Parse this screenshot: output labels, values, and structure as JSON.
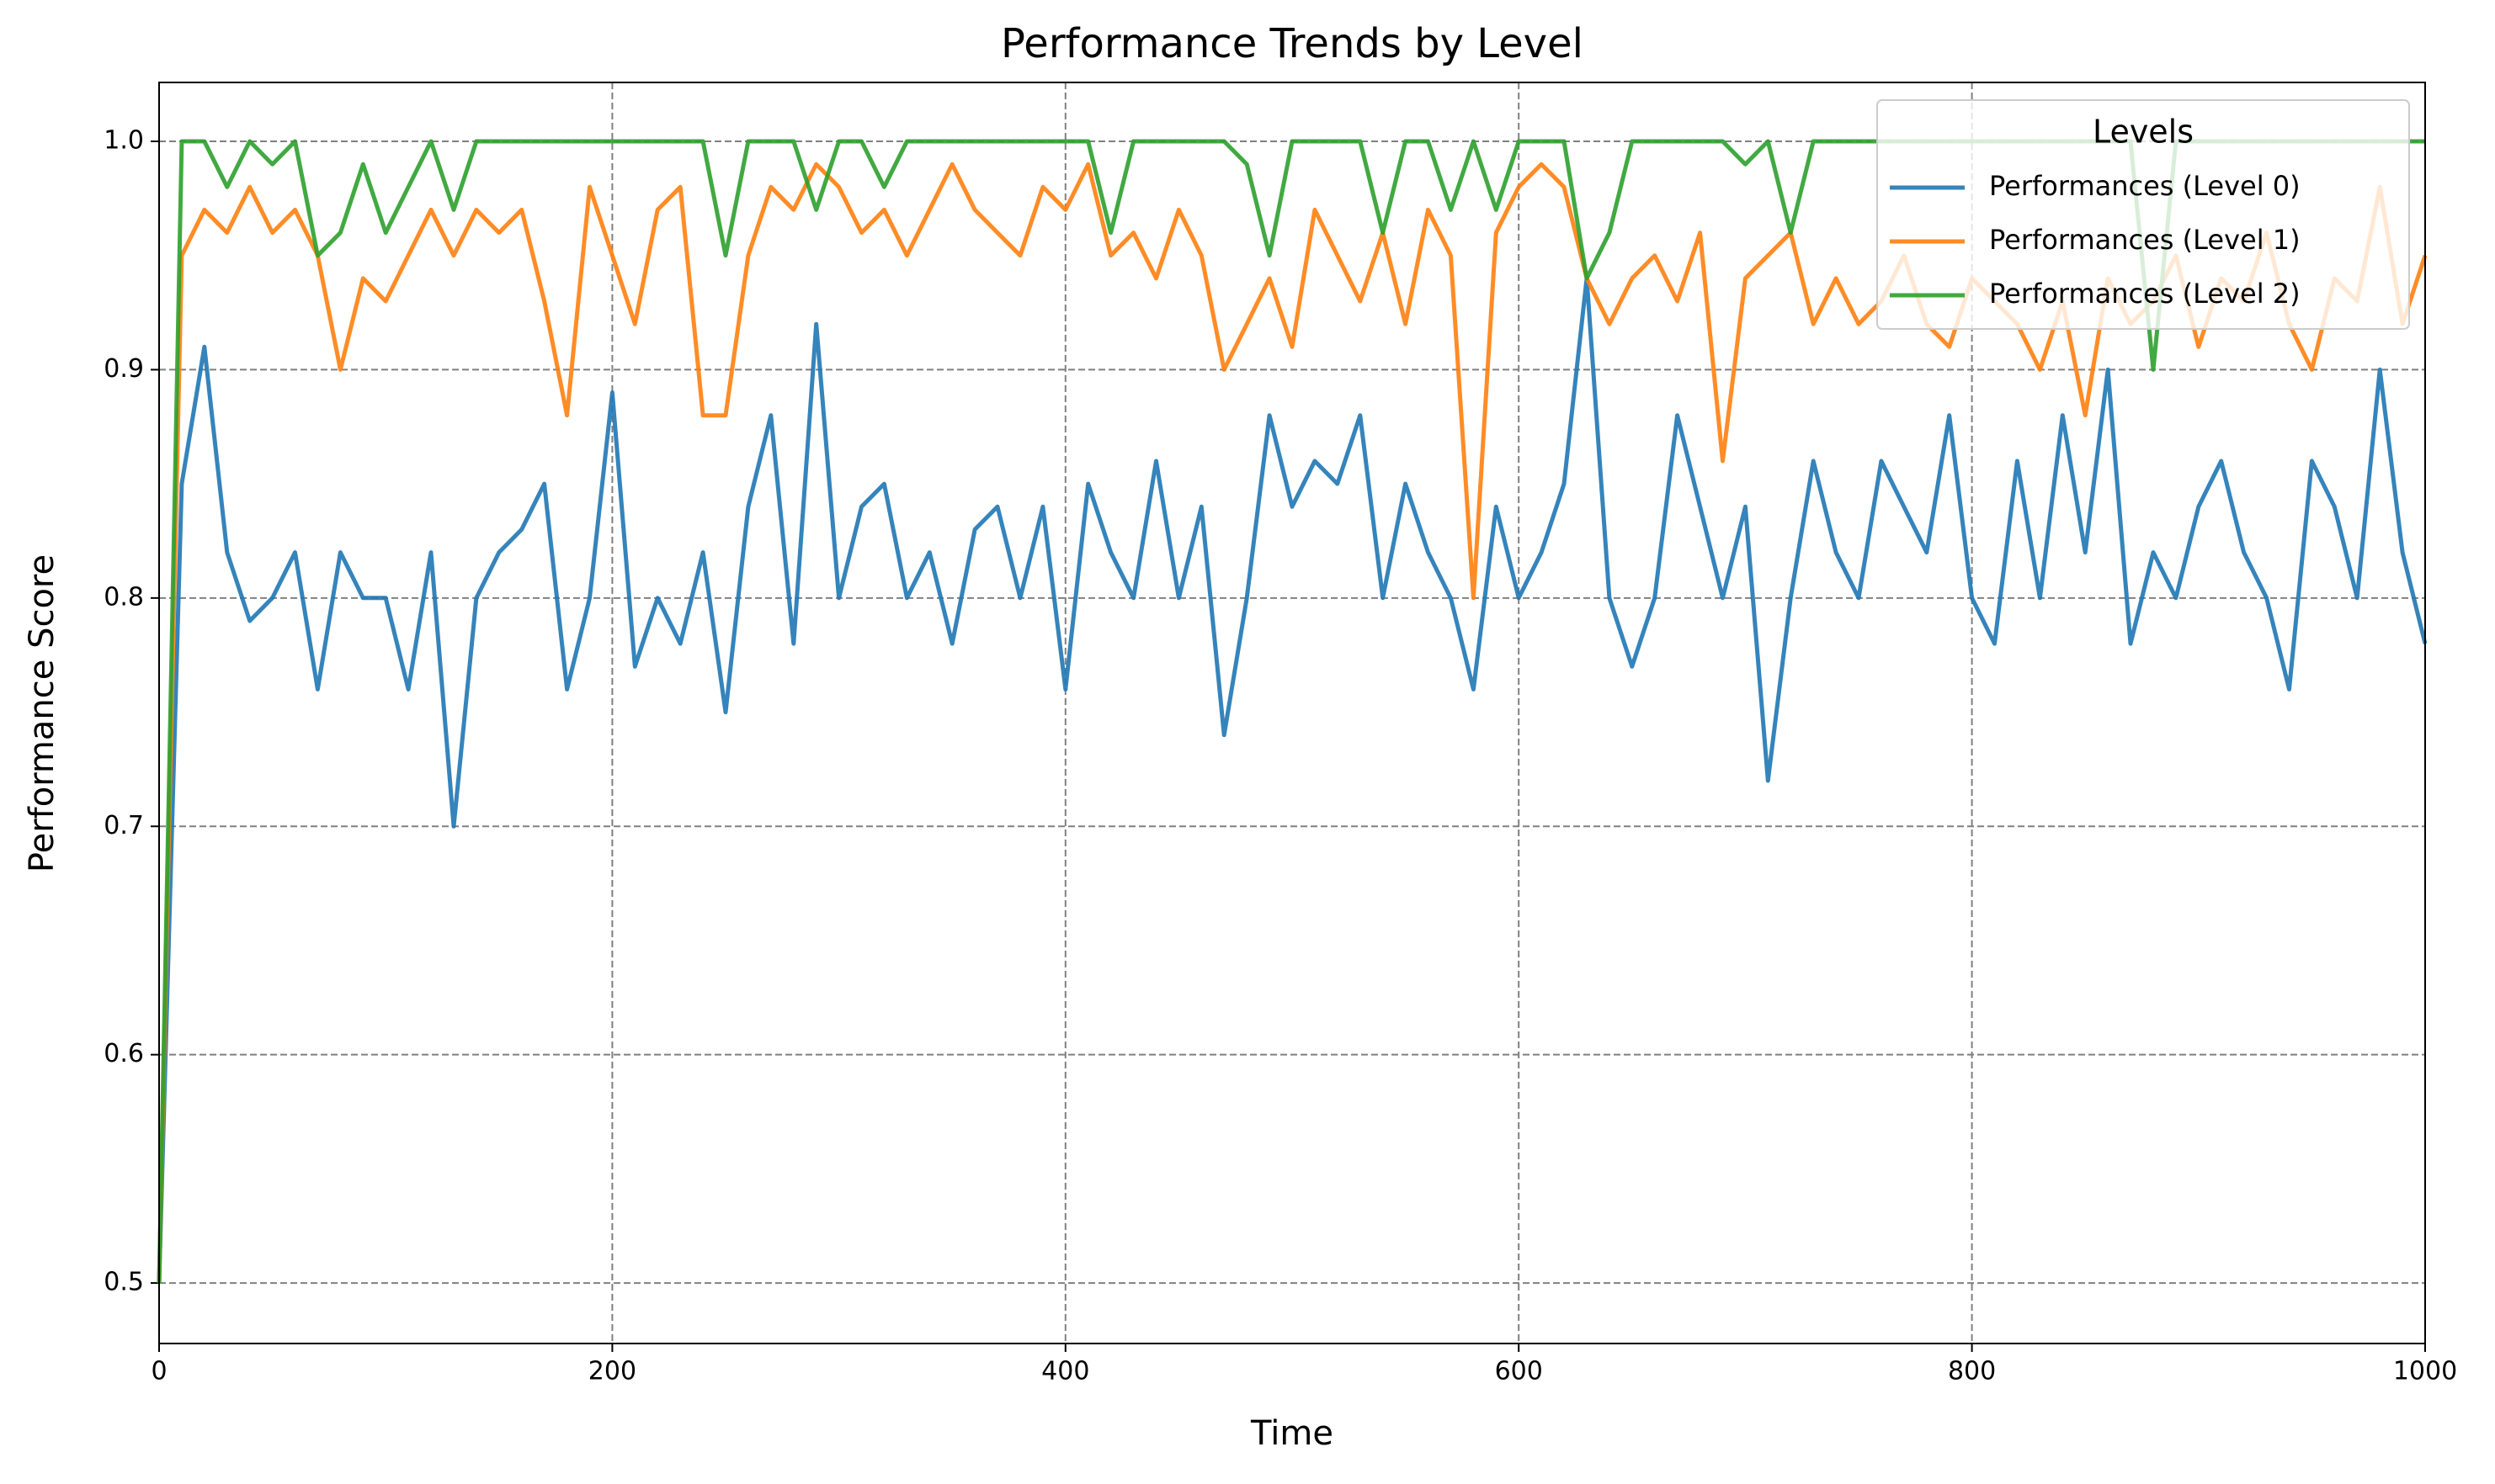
{
  "chart_data": {
    "type": "line",
    "title": "Performance Trends by Level",
    "xlabel": "Time",
    "ylabel": "Performance Score",
    "x": [
      0,
      10,
      20,
      30,
      40,
      50,
      60,
      70,
      80,
      90,
      100,
      110,
      120,
      130,
      140,
      150,
      160,
      170,
      180,
      190,
      200,
      210,
      220,
      230,
      240,
      250,
      260,
      270,
      280,
      290,
      300,
      310,
      320,
      330,
      340,
      350,
      360,
      370,
      380,
      390,
      400,
      410,
      420,
      430,
      440,
      450,
      460,
      470,
      480,
      490,
      500,
      510,
      520,
      530,
      540,
      550,
      560,
      570,
      580,
      590,
      600,
      610,
      620,
      630,
      640,
      650,
      660,
      670,
      680,
      690,
      700,
      710,
      720,
      730,
      740,
      750,
      760,
      770,
      780,
      790,
      800,
      810,
      820,
      830,
      840,
      850,
      860,
      870,
      880,
      890,
      900,
      910,
      920,
      930,
      940,
      950,
      960,
      970,
      980,
      990,
      1000
    ],
    "series": [
      {
        "name": "Performances (Level 0)",
        "color": "#1f77b4",
        "values": [
          0.5,
          0.85,
          0.91,
          0.82,
          0.79,
          0.8,
          0.82,
          0.76,
          0.82,
          0.8,
          0.8,
          0.76,
          0.82,
          0.7,
          0.8,
          0.82,
          0.83,
          0.85,
          0.76,
          0.8,
          0.89,
          0.77,
          0.8,
          0.78,
          0.82,
          0.75,
          0.84,
          0.88,
          0.78,
          0.92,
          0.8,
          0.84,
          0.85,
          0.8,
          0.82,
          0.78,
          0.83,
          0.84,
          0.8,
          0.84,
          0.76,
          0.85,
          0.82,
          0.8,
          0.86,
          0.8,
          0.84,
          0.74,
          0.8,
          0.88,
          0.84,
          0.86,
          0.85,
          0.88,
          0.8,
          0.85,
          0.82,
          0.8,
          0.76,
          0.84,
          0.8,
          0.82,
          0.85,
          0.94,
          0.8,
          0.77,
          0.8,
          0.88,
          0.84,
          0.8,
          0.84,
          0.72,
          0.8,
          0.86,
          0.82,
          0.8,
          0.86,
          0.84,
          0.82,
          0.88,
          0.8,
          0.78,
          0.86,
          0.8,
          0.88,
          0.82,
          0.9,
          0.78,
          0.82,
          0.8,
          0.84,
          0.86,
          0.82,
          0.8,
          0.76,
          0.86,
          0.84,
          0.8,
          0.9,
          0.82,
          0.78
        ]
      },
      {
        "name": "Performances (Level 1)",
        "color": "#ff7f0e",
        "values": [
          0.5,
          0.95,
          0.97,
          0.96,
          0.98,
          0.96,
          0.97,
          0.95,
          0.9,
          0.94,
          0.93,
          0.95,
          0.97,
          0.95,
          0.97,
          0.96,
          0.97,
          0.93,
          0.88,
          0.98,
          0.95,
          0.92,
          0.97,
          0.98,
          0.88,
          0.88,
          0.95,
          0.98,
          0.97,
          0.99,
          0.98,
          0.96,
          0.97,
          0.95,
          0.97,
          0.99,
          0.97,
          0.96,
          0.95,
          0.98,
          0.97,
          0.99,
          0.95,
          0.96,
          0.94,
          0.97,
          0.95,
          0.9,
          0.92,
          0.94,
          0.91,
          0.97,
          0.95,
          0.93,
          0.96,
          0.92,
          0.97,
          0.95,
          0.8,
          0.96,
          0.98,
          0.99,
          0.98,
          0.94,
          0.92,
          0.94,
          0.95,
          0.93,
          0.96,
          0.86,
          0.94,
          0.95,
          0.96,
          0.92,
          0.94,
          0.92,
          0.93,
          0.95,
          0.92,
          0.91,
          0.94,
          0.93,
          0.92,
          0.9,
          0.93,
          0.88,
          0.94,
          0.92,
          0.93,
          0.95,
          0.91,
          0.94,
          0.93,
          0.96,
          0.92,
          0.9,
          0.94,
          0.93,
          0.98,
          0.92,
          0.95
        ]
      },
      {
        "name": "Performances (Level 2)",
        "color": "#2ca02c",
        "values": [
          0.5,
          1,
          1,
          0.98,
          1,
          0.99,
          1,
          0.95,
          0.96,
          0.99,
          0.96,
          0.98,
          1,
          0.97,
          1,
          1,
          1,
          1,
          1,
          1,
          1,
          1,
          1,
          1,
          1,
          0.95,
          1,
          1,
          1,
          0.97,
          1,
          1,
          0.98,
          1,
          1,
          1,
          1,
          1,
          1,
          1,
          1,
          1,
          0.96,
          1,
          1,
          1,
          1,
          1,
          0.99,
          0.95,
          1,
          1,
          1,
          1,
          0.96,
          1,
          1,
          0.97,
          1,
          0.97,
          1,
          1,
          1,
          0.94,
          0.96,
          1,
          1,
          1,
          1,
          1,
          0.99,
          1,
          0.96,
          1,
          1,
          1,
          1,
          1,
          1,
          1,
          1,
          1,
          1,
          1,
          1,
          1,
          1,
          1,
          0.9,
          1,
          1,
          1,
          1,
          1,
          1,
          1,
          1,
          1,
          1,
          1,
          1
        ]
      }
    ],
    "xlim": [
      0,
      1000
    ],
    "xticks": [
      0,
      200,
      400,
      600,
      800,
      1000
    ],
    "ylim": [
      0.4735,
      1.0258
    ],
    "yticks": [
      0.5,
      0.6,
      0.7,
      0.8,
      0.9,
      {
        "value": 1,
        "label": "1.0"
      }
    ],
    "grid": true,
    "legend_title": "Levels",
    "legend": "upper right"
  }
}
